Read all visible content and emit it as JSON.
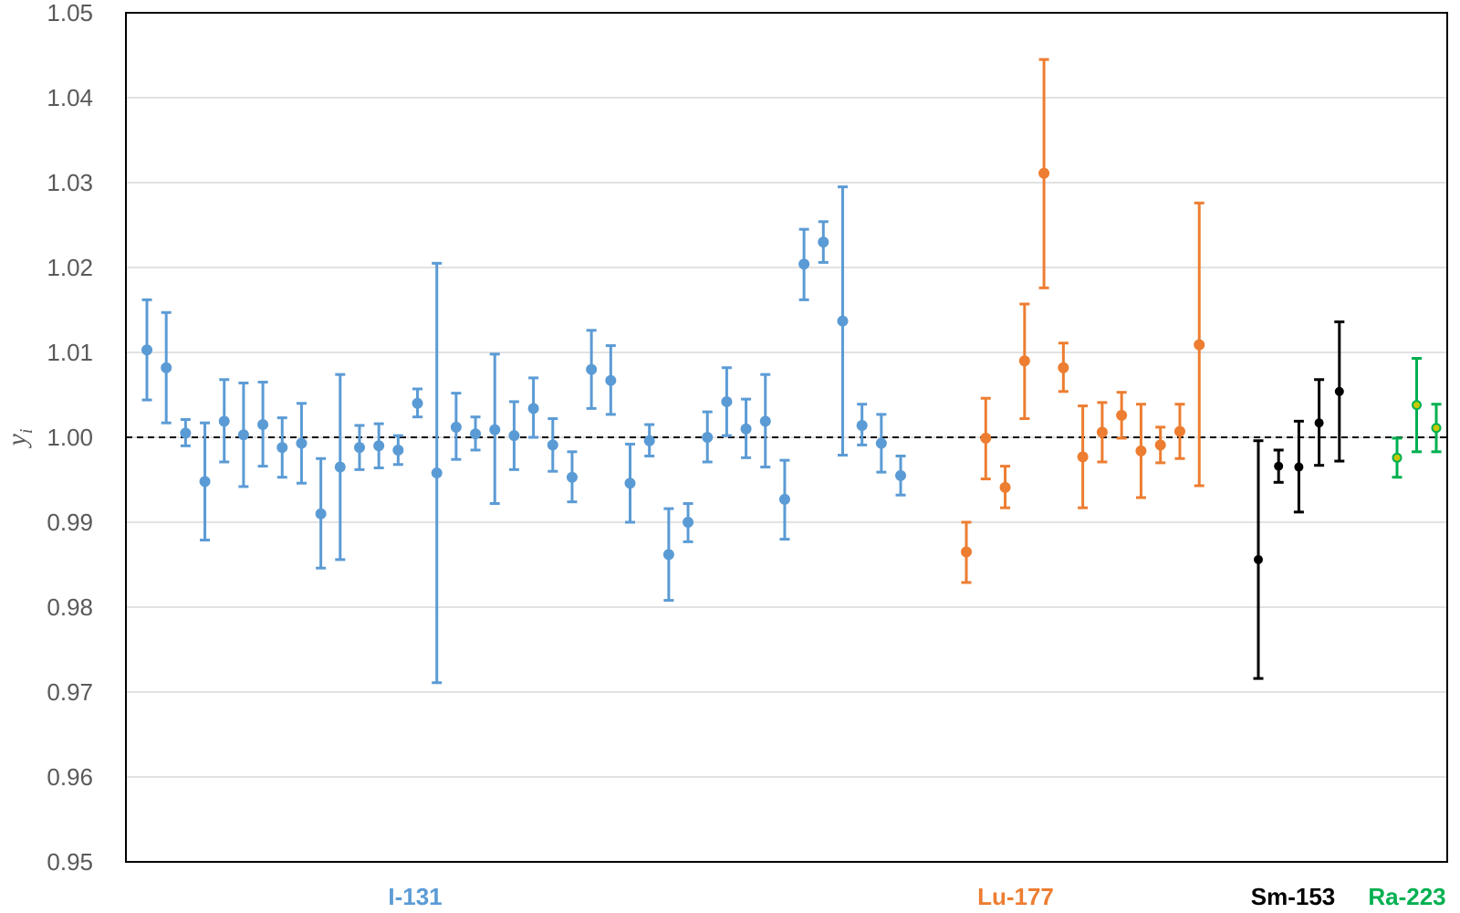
{
  "chart_data": {
    "type": "scatter",
    "title": "",
    "xlabel": "",
    "ylabel": "y",
    "ylabel_sub": "i",
    "ylim": [
      0.95,
      1.05
    ],
    "yticks": [
      "0.95",
      "0.96",
      "0.97",
      "0.98",
      "0.99",
      "1.00",
      "1.01",
      "1.02",
      "1.03",
      "1.04",
      "1.05"
    ],
    "grid": true,
    "reference_line": {
      "y": 1.0,
      "style": "dashed"
    },
    "series": [
      {
        "label": "I-131",
        "color": "#5b9bd5",
        "points": [
          {
            "y": 1.0103,
            "lo": 1.0044,
            "hi": 1.0162
          },
          {
            "y": 1.0082,
            "lo": 1.0017,
            "hi": 1.0147
          },
          {
            "y": 1.0005,
            "lo": 0.999,
            "hi": 1.0021
          },
          {
            "y": 0.9948,
            "lo": 0.9879,
            "hi": 1.0017
          },
          {
            "y": 1.0019,
            "lo": 0.9971,
            "hi": 1.0068
          },
          {
            "y": 1.0003,
            "lo": 0.9942,
            "hi": 1.0064
          },
          {
            "y": 1.0015,
            "lo": 0.9966,
            "hi": 1.0065
          },
          {
            "y": 0.9988,
            "lo": 0.9953,
            "hi": 1.0023
          },
          {
            "y": 0.9993,
            "lo": 0.9946,
            "hi": 1.004
          },
          {
            "y": 0.991,
            "lo": 0.9846,
            "hi": 0.9975
          },
          {
            "y": 0.9965,
            "lo": 0.9856,
            "hi": 1.0074
          },
          {
            "y": 0.9988,
            "lo": 0.9962,
            "hi": 1.0014
          },
          {
            "y": 0.999,
            "lo": 0.9964,
            "hi": 1.0016
          },
          {
            "y": 0.9985,
            "lo": 0.9968,
            "hi": 1.0002
          },
          {
            "y": 1.004,
            "lo": 1.0024,
            "hi": 1.0057
          },
          {
            "y": 0.9958,
            "lo": 0.9711,
            "hi": 1.0205
          },
          {
            "y": 1.0012,
            "lo": 0.9974,
            "hi": 1.0052
          },
          {
            "y": 1.0004,
            "lo": 0.9985,
            "hi": 1.0024
          },
          {
            "y": 1.0009,
            "lo": 0.9922,
            "hi": 1.0098
          },
          {
            "y": 1.0002,
            "lo": 0.9962,
            "hi": 1.0042
          },
          {
            "y": 1.0034,
            "lo": 1.0,
            "hi": 1.007
          },
          {
            "y": 0.9991,
            "lo": 0.996,
            "hi": 1.0022
          },
          {
            "y": 0.9953,
            "lo": 0.9924,
            "hi": 0.9983
          },
          {
            "y": 1.008,
            "lo": 1.0034,
            "hi": 1.0126
          },
          {
            "y": 1.0067,
            "lo": 1.0027,
            "hi": 1.0108
          },
          {
            "y": 0.9946,
            "lo": 0.99,
            "hi": 0.9992
          },
          {
            "y": 0.9996,
            "lo": 0.9978,
            "hi": 1.0015
          },
          {
            "y": 0.9862,
            "lo": 0.9808,
            "hi": 0.9916
          },
          {
            "y": 0.99,
            "lo": 0.9877,
            "hi": 0.9922
          },
          {
            "y": 1.0,
            "lo": 0.9971,
            "hi": 1.003
          },
          {
            "y": 1.0042,
            "lo": 1.0002,
            "hi": 1.0082
          },
          {
            "y": 1.001,
            "lo": 0.9976,
            "hi": 1.0045
          },
          {
            "y": 1.0019,
            "lo": 0.9965,
            "hi": 1.0074
          },
          {
            "y": 0.9927,
            "lo": 0.988,
            "hi": 0.9973
          },
          {
            "y": 1.0204,
            "lo": 1.0162,
            "hi": 1.0245
          },
          {
            "y": 1.023,
            "lo": 1.0206,
            "hi": 1.0254
          },
          {
            "y": 1.0137,
            "lo": 0.9979,
            "hi": 1.0295
          },
          {
            "y": 1.0014,
            "lo": 0.9991,
            "hi": 1.0039
          },
          {
            "y": 0.9993,
            "lo": 0.9959,
            "hi": 1.0027
          },
          {
            "y": 0.9955,
            "lo": 0.9932,
            "hi": 0.9978
          }
        ]
      },
      {
        "label": "Lu-177",
        "color": "#ed7d31",
        "points": [
          {
            "y": 0.9865,
            "lo": 0.9829,
            "hi": 0.99
          },
          {
            "y": 0.9999,
            "lo": 0.9951,
            "hi": 1.0046
          },
          {
            "y": 0.9941,
            "lo": 0.9917,
            "hi": 0.9966
          },
          {
            "y": 1.009,
            "lo": 1.0022,
            "hi": 1.0157
          },
          {
            "y": 1.0311,
            "lo": 1.0176,
            "hi": 1.0445
          },
          {
            "y": 1.0082,
            "lo": 1.0054,
            "hi": 1.0111
          },
          {
            "y": 0.9977,
            "lo": 0.9917,
            "hi": 1.0037
          },
          {
            "y": 1.0006,
            "lo": 0.9971,
            "hi": 1.0041
          },
          {
            "y": 1.0026,
            "lo": 0.9999,
            "hi": 1.0053
          },
          {
            "y": 0.9984,
            "lo": 0.9929,
            "hi": 1.0039
          },
          {
            "y": 0.9991,
            "lo": 0.997,
            "hi": 1.0012
          },
          {
            "y": 1.0007,
            "lo": 0.9975,
            "hi": 1.0039
          },
          {
            "y": 1.0109,
            "lo": 0.9943,
            "hi": 1.0276
          }
        ]
      },
      {
        "label": "Sm-153",
        "color": "#000000",
        "points": [
          {
            "y": 0.9856,
            "lo": 0.9716,
            "hi": 0.9996
          },
          {
            "y": 0.9966,
            "lo": 0.9947,
            "hi": 0.9985
          },
          {
            "y": 0.9965,
            "lo": 0.9912,
            "hi": 1.0019
          },
          {
            "y": 1.0017,
            "lo": 0.9967,
            "hi": 1.0068
          },
          {
            "y": 1.0054,
            "lo": 0.9972,
            "hi": 1.0136
          }
        ]
      },
      {
        "label": "Ra-223",
        "color": "#00b050",
        "marker_color": "#c8c800",
        "points": [
          {
            "y": 0.9976,
            "lo": 0.9953,
            "hi": 0.9999
          },
          {
            "y": 1.0038,
            "lo": 0.9983,
            "hi": 1.0093
          },
          {
            "y": 1.0011,
            "lo": 0.9983,
            "hi": 1.0039
          }
        ]
      }
    ]
  }
}
